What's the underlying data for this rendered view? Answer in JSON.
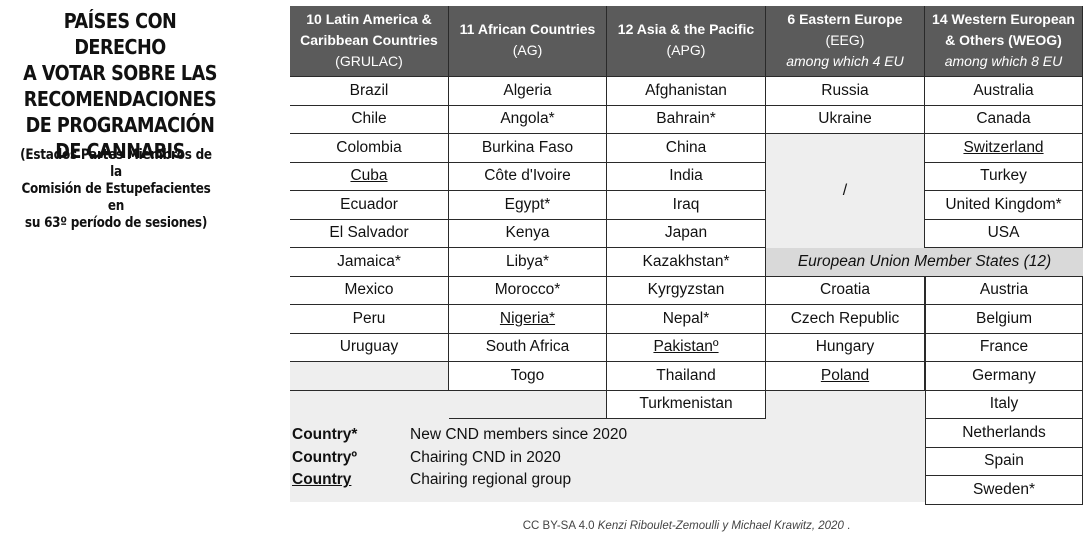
{
  "title": "PAÍSES CON DERECHO A VOTAR SOBRE LAS RECOMENDACIONES DE PROGRAMACIÓN DE CANNABIS",
  "title_lines": [
    "PAÍSES CON DERECHO",
    "A VOTAR SOBRE LAS",
    "RECOMENDACIONES",
    "DE PROGRAMACIÓN",
    "DE CANNABIS"
  ],
  "subtitle_lines": [
    "(Estados Partes Miembros de la",
    "Comisión de Estupefacientes en",
    "su 63º período de sesiones)"
  ],
  "headers": [
    {
      "l1": "10 Latin America &",
      "l2": "Caribbean Countries",
      "l3": "(GRULAC)"
    },
    {
      "l1": "11 African Countries",
      "l2": "(AG)",
      "l3": ""
    },
    {
      "l1": "12 Asia & the Pacific",
      "l2": "(APG)",
      "l3": ""
    },
    {
      "l1": "6 Eastern Europe",
      "l2": "(EEG)",
      "l3": "among which 4 EU"
    },
    {
      "l1": "14 Western European",
      "l2": "& Others (WEOG)",
      "l3": "among which 8 EU"
    }
  ],
  "columns": {
    "grulac": [
      "Brazil",
      "Chile",
      "Colombia",
      "Cuba",
      "Ecuador",
      "El Salvador",
      "Jamaica*",
      "Mexico",
      "Peru",
      "Uruguay"
    ],
    "ag": [
      "Algeria",
      "Angola*",
      "Burkina Faso",
      "Côte d'Ivoire",
      "Egypt*",
      "Kenya",
      "Libya*",
      "Morocco*",
      "Nigeria*",
      "South Africa",
      "Togo"
    ],
    "apg": [
      "Afghanistan",
      "Bahrain*",
      "China",
      "India",
      "Iraq",
      "Japan",
      "Kazakhstan*",
      "Kyrgyzstan",
      "Nepal*",
      "Pakistanº",
      "Thailand",
      "Turkmenistan"
    ],
    "eeg_top": [
      "Russia",
      "Ukraine"
    ],
    "eeg_slash": "/",
    "eeg_eu": [
      "Croatia",
      "Czech Republic",
      "Hungary",
      "Poland"
    ],
    "weog_top": [
      "Australia",
      "Canada",
      "Switzerland",
      "Turkey",
      "United Kingdom*",
      "USA"
    ],
    "weog_eu": [
      "Austria",
      "Belgium",
      "France",
      "Germany",
      "Italy",
      "Netherlands",
      "Spain",
      "Sweden*"
    ]
  },
  "underlined": [
    "Cuba",
    "Nigeria*",
    "Pakistanº",
    "Switzerland",
    "Poland"
  ],
  "eu_banner": "European Union Member States (12)",
  "legend": [
    {
      "key": "Country*",
      "text": "New CND members since 2020"
    },
    {
      "key": "Countryº",
      "text": "Chairing CND in 2020"
    },
    {
      "key": "Country",
      "text": "Chairing regional group"
    }
  ],
  "credit": {
    "license": "CC BY-SA 4.0",
    "authors": "Kenzi Riboulet-Zemoulli y Michael Krawitz, 2020",
    "end": "."
  },
  "colors": {
    "header_bg": "#5b5b5b",
    "eu_banner_bg": "#d9d9d9",
    "panel_bg": "#eeeeee"
  }
}
